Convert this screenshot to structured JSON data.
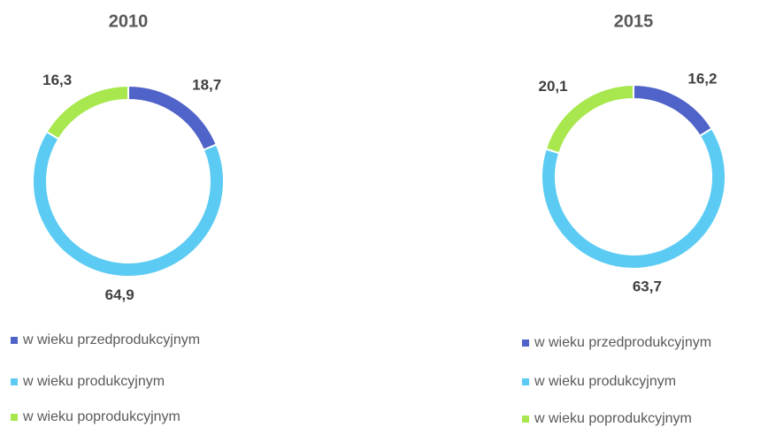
{
  "chart_data": [
    {
      "type": "pie",
      "donut": true,
      "title": "2010",
      "categories": [
        "w wieku przedprodukcyjnym",
        "w wieku produkcyjnym",
        "w wieku poprodukcyjnym"
      ],
      "values": [
        18.7,
        64.9,
        16.3
      ],
      "value_labels": [
        "18,7",
        "64,9",
        "16,3"
      ],
      "colors": [
        "#4f63c8",
        "#5bcbf3",
        "#a8e84e"
      ]
    },
    {
      "type": "pie",
      "donut": true,
      "title": "2015",
      "categories": [
        "w wieku przedprodukcyjnym",
        "w wieku produkcyjnym",
        "w wieku poprodukcyjnym"
      ],
      "values": [
        16.2,
        63.7,
        20.1
      ],
      "value_labels": [
        "16,2",
        "63,7",
        "20,1"
      ],
      "colors": [
        "#4f63c8",
        "#5bcbf3",
        "#a8e84e"
      ]
    }
  ]
}
